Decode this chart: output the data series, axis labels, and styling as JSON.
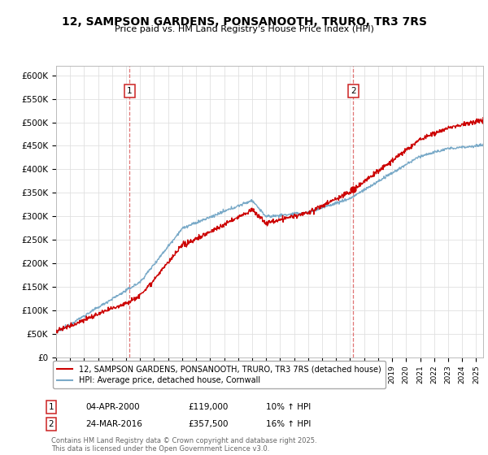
{
  "title": "12, SAMPSON GARDENS, PONSANOOTH, TRURO, TR3 7RS",
  "subtitle": "Price paid vs. HM Land Registry's House Price Index (HPI)",
  "ylim": [
    0,
    620000
  ],
  "yticks": [
    0,
    50000,
    100000,
    150000,
    200000,
    250000,
    300000,
    350000,
    400000,
    450000,
    500000,
    550000,
    600000
  ],
  "ytick_labels": [
    "£0",
    "£50K",
    "£100K",
    "£150K",
    "£200K",
    "£250K",
    "£300K",
    "£350K",
    "£400K",
    "£450K",
    "£500K",
    "£550K",
    "£600K"
  ],
  "line1_color": "#cc0000",
  "line2_color": "#7aaac8",
  "marker1_date": 2000.25,
  "marker1_value": 119000,
  "marker2_date": 2016.23,
  "marker2_value": 357500,
  "vline_color": "#dd6666",
  "legend_label1": "12, SAMPSON GARDENS, PONSANOOTH, TRURO, TR3 7RS (detached house)",
  "legend_label2": "HPI: Average price, detached house, Cornwall",
  "table_row1": [
    "1",
    "04-APR-2000",
    "£119,000",
    "10% ↑ HPI"
  ],
  "table_row2": [
    "2",
    "24-MAR-2016",
    "£357,500",
    "16% ↑ HPI"
  ],
  "copyright_text": "Contains HM Land Registry data © Crown copyright and database right 2025.\nThis data is licensed under the Open Government Licence v3.0.",
  "bg_color": "#ffffff",
  "grid_color": "#e0e0e0",
  "title_fontsize": 10,
  "subtitle_fontsize": 8,
  "tick_fontsize": 7.5
}
